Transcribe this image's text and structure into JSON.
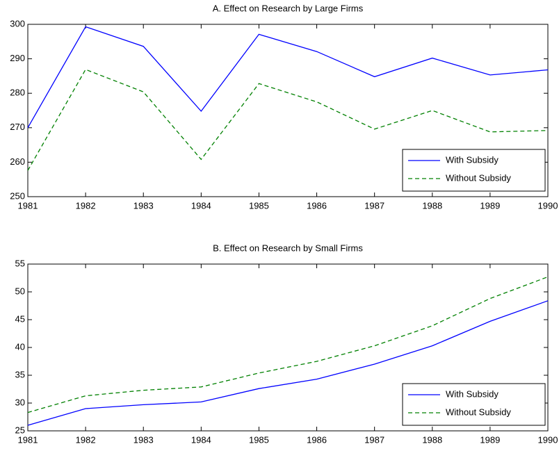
{
  "chart_data": [
    {
      "type": "line",
      "title": "A. Effect on Research by Large Firms",
      "x": [
        1981,
        1982,
        1983,
        1984,
        1985,
        1986,
        1987,
        1988,
        1989,
        1990
      ],
      "xlim": [
        1981,
        1990
      ],
      "xticks": [
        1981,
        1982,
        1983,
        1984,
        1985,
        1986,
        1987,
        1988,
        1989,
        1990
      ],
      "ylim": [
        250,
        300
      ],
      "yticks": [
        250,
        260,
        270,
        280,
        290,
        300
      ],
      "legend": "lower right",
      "series": [
        {
          "name": "With Subsidy",
          "color": "#0000ff",
          "linestyle": "solid",
          "values": [
            270,
            299.3,
            293.6,
            274.8,
            297.1,
            292.1,
            284.8,
            290.2,
            285.3,
            286.8
          ]
        },
        {
          "name": "Without Subsidy",
          "color": "#008000",
          "linestyle": "dashed",
          "values": [
            257.6,
            286.9,
            280.4,
            260.8,
            282.8,
            277.5,
            269.6,
            275.0,
            268.8,
            269.2
          ]
        }
      ]
    },
    {
      "type": "line",
      "title": "B. Effect on Research by Small Firms",
      "x": [
        1981,
        1982,
        1983,
        1984,
        1985,
        1986,
        1987,
        1988,
        1989,
        1990
      ],
      "xlim": [
        1981,
        1990
      ],
      "xticks": [
        1981,
        1982,
        1983,
        1984,
        1985,
        1986,
        1987,
        1988,
        1989,
        1990
      ],
      "ylim": [
        25,
        55
      ],
      "yticks": [
        25,
        30,
        35,
        40,
        45,
        50,
        55
      ],
      "legend": "lower right",
      "series": [
        {
          "name": "With Subsidy",
          "color": "#0000ff",
          "linestyle": "solid",
          "values": [
            26.0,
            29.0,
            29.7,
            30.2,
            32.6,
            34.3,
            37.0,
            40.3,
            44.7,
            48.4
          ]
        },
        {
          "name": "Without Subsidy",
          "color": "#008000",
          "linestyle": "dashed",
          "values": [
            28.3,
            31.3,
            32.3,
            32.9,
            35.4,
            37.5,
            40.3,
            43.9,
            48.8,
            52.7
          ]
        }
      ]
    }
  ]
}
